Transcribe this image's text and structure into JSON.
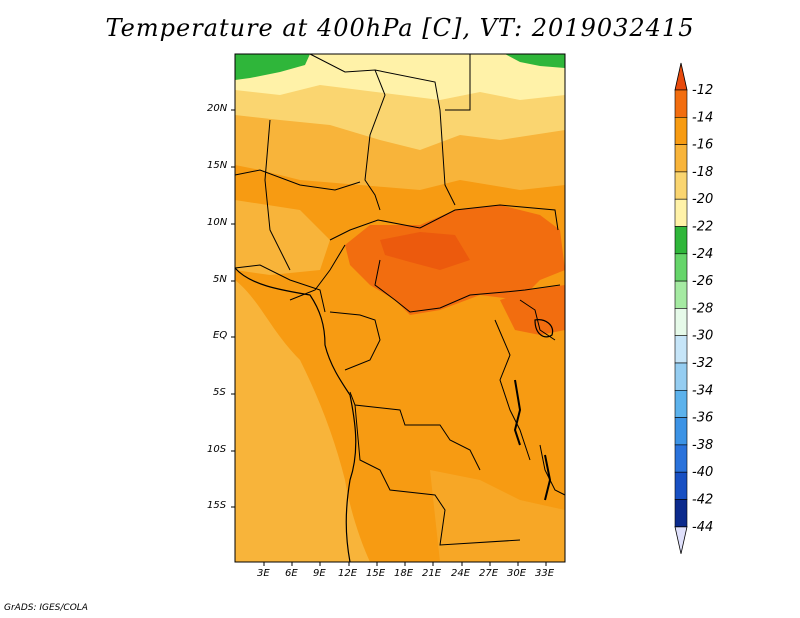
{
  "title": "Temperature at 400hPa [C], VT: 2019032415",
  "credit": "GrADS: IGES/COLA",
  "map": {
    "lat_labels": [
      "20N",
      "15N",
      "10N",
      "5N",
      "EQ",
      "5S",
      "10S",
      "15S"
    ],
    "lon_labels": [
      "3E",
      "6E",
      "9E",
      "12E",
      "15E",
      "18E",
      "21E",
      "24E",
      "27E",
      "30E",
      "33E"
    ]
  },
  "colorbar": {
    "labels": [
      "-12",
      "-14",
      "-16",
      "-18",
      "-20",
      "-22",
      "-24",
      "-26",
      "-28",
      "-30",
      "-32",
      "-34",
      "-36",
      "-38",
      "-40",
      "-42",
      "-44"
    ],
    "colors": [
      "#e84a0c",
      "#f26d0f",
      "#f79b12",
      "#f8b43a",
      "#fad570",
      "#fff2a8",
      "#2fb63a",
      "#66d56a",
      "#a5eaa2",
      "#e6fae9",
      "#c6e5f8",
      "#95cdf1",
      "#5cb2ec",
      "#3c93e5",
      "#2a72db",
      "#1850c3",
      "#0b2a8c",
      "#0a1468"
    ],
    "upper_arrow": "#e84a0c",
    "lower_arrow": "#dfe0fb"
  }
}
